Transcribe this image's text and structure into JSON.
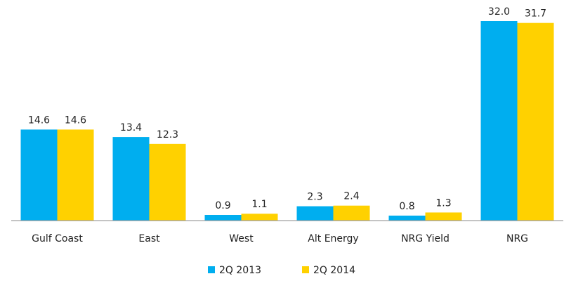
{
  "chart_data": {
    "type": "bar",
    "categories": [
      "Gulf Coast",
      "East",
      "West",
      "Alt Energy",
      "NRG Yield",
      "NRG"
    ],
    "series": [
      {
        "name": "2Q 2013",
        "color": "#00aeef",
        "values": [
          14.6,
          13.4,
          0.9,
          2.3,
          0.8,
          32.0
        ],
        "value_labels": [
          "14.6",
          "13.4",
          "0.9",
          "2.3",
          "0.8",
          "32.0"
        ]
      },
      {
        "name": "2Q 2014",
        "color": "#ffd100",
        "values": [
          14.6,
          12.3,
          1.1,
          2.4,
          1.3,
          31.7
        ],
        "value_labels": [
          "14.6",
          "12.3",
          "1.1",
          "2.4",
          "1.3",
          "31.7"
        ]
      }
    ],
    "legend": "bottom"
  }
}
